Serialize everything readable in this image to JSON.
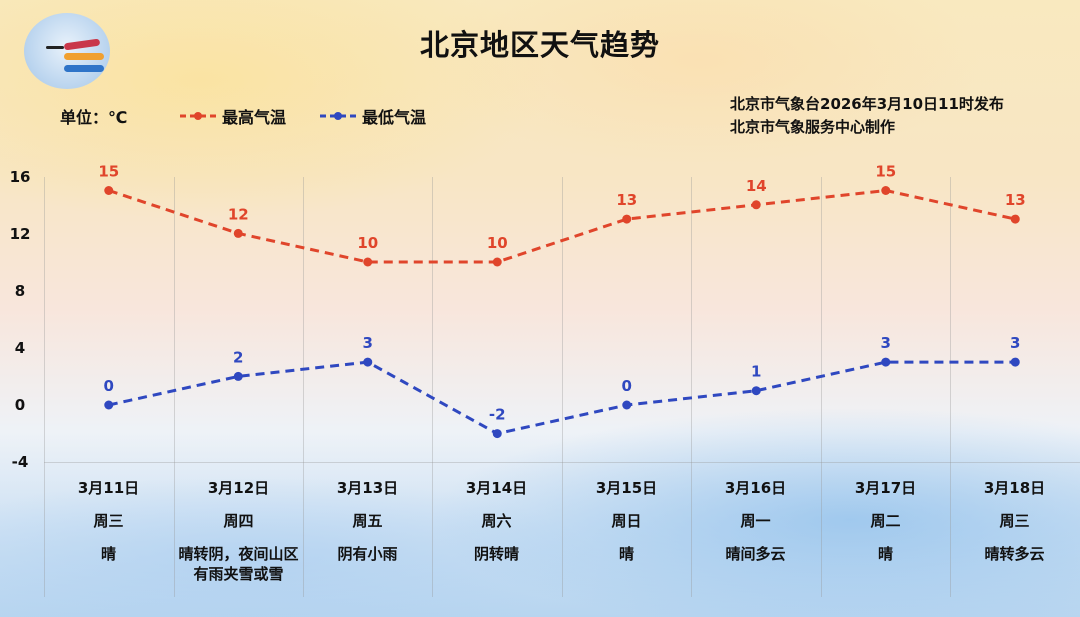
{
  "header": {
    "title": "北京地区天气趋势",
    "unit": "单位：℃",
    "issuer_line1": "北京市气象台2026年3月10日11时发布",
    "issuer_line2": "北京市气象服务中心制作",
    "logo": "meteorological-service-logo"
  },
  "legend": {
    "high": "最高气温",
    "low": "最低气温"
  },
  "colors": {
    "high": "#e0452b",
    "low": "#2f48c0"
  },
  "chart_data": {
    "type": "line",
    "title": "北京地区天气趋势",
    "xlabel": "",
    "ylabel": "单位：℃",
    "ylim": [
      -4,
      16
    ],
    "yticks": [
      16,
      12,
      8,
      4,
      0,
      -4
    ],
    "categories": [
      "3月11日",
      "3月12日",
      "3月13日",
      "3月14日",
      "3月15日",
      "3月16日",
      "3月17日",
      "3月18日"
    ],
    "series": [
      {
        "name": "最高气温",
        "values": [
          15,
          12,
          10,
          10,
          13,
          14,
          15,
          13
        ]
      },
      {
        "name": "最低气温",
        "values": [
          0,
          2,
          3,
          -2,
          0,
          1,
          3,
          3
        ]
      }
    ],
    "legend_position": "top",
    "grid": "vertical"
  },
  "days": [
    {
      "date": "3月11日",
      "weekday": "周三",
      "weather": "晴"
    },
    {
      "date": "3月12日",
      "weekday": "周四",
      "weather": "晴转阴，夜间山区有雨夹雪或雪"
    },
    {
      "date": "3月13日",
      "weekday": "周五",
      "weather": "阴有小雨"
    },
    {
      "date": "3月14日",
      "weekday": "周六",
      "weather": "阴转晴"
    },
    {
      "date": "3月15日",
      "weekday": "周日",
      "weather": "晴"
    },
    {
      "date": "3月16日",
      "weekday": "周一",
      "weather": "晴间多云"
    },
    {
      "date": "3月17日",
      "weekday": "周二",
      "weather": "晴"
    },
    {
      "date": "3月18日",
      "weekday": "周三",
      "weather": "晴转多云"
    }
  ]
}
